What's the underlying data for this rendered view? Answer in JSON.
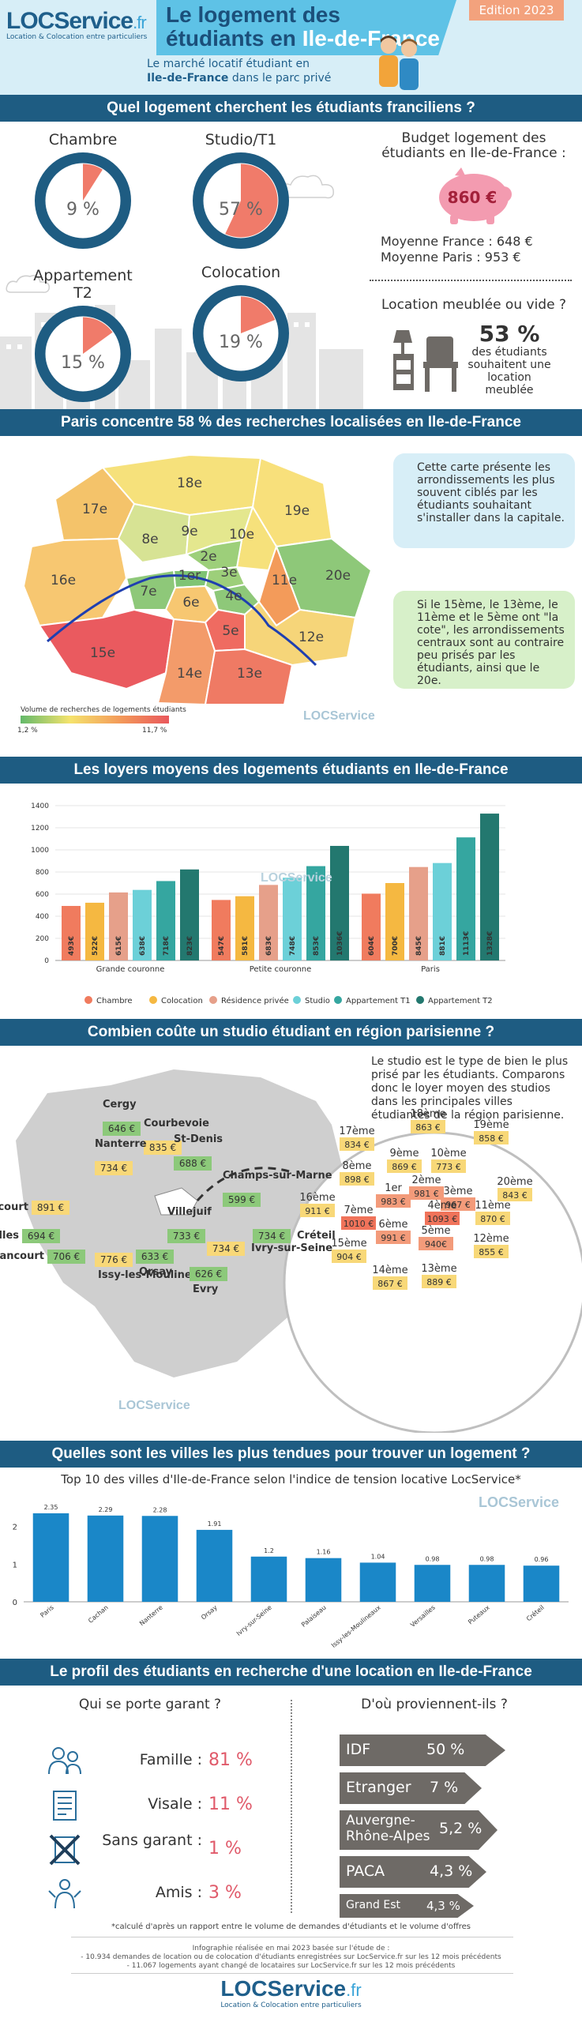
{
  "header": {
    "logo_main": "LOCService",
    "logo_tld": ".fr",
    "logo_sub": "Location & Colocation entre particuliers",
    "title_line1": "Le logement des",
    "title_line2a": "étudiants en ",
    "title_line2b": "Ile-de-France",
    "edition": "Edition 2023",
    "subtitle_line1": "Le marché locatif étudiant en",
    "subtitle_bold": "Ile-de-France",
    "subtitle_rest": " dans le parc privé"
  },
  "section1": {
    "bar": "Quel logement cherchent les étudiants franciliens ?",
    "donuts": [
      {
        "label": "Chambre",
        "value": "9 %",
        "pct": 9
      },
      {
        "label": "Studio/T1",
        "value": "57 %",
        "pct": 57
      },
      {
        "label": "Appartement T2",
        "value": "15 %",
        "pct": 15
      },
      {
        "label": "Colocation",
        "value": "19 %",
        "pct": 19
      }
    ],
    "budget_title": "Budget logement des étudiants en Ile-de-France :",
    "budget_value": "860 €",
    "avg_france": "Moyenne France : 648 €",
    "avg_paris": "Moyenne Paris : 953 €",
    "meuble_title": "Location meublée ou vide ?",
    "meuble_pct": "53 %",
    "meuble_text": "des étudiants souhaitent une location meublée"
  },
  "section2": {
    "bar": "Paris concentre 58 % des recherches localisées en Ile-de-France",
    "bubble1": "Cette carte présente les arrondissements les plus souvent ciblés par les étudiants souhaitant s'installer dans la capitale.",
    "bubble2": "Si le 15ème, le 13ème, le 11ème et le 5ème ont \"la cote\", les arrondissements centraux sont au contraire peu prisés par les étudiants, ainsi que le 20e.",
    "legend_title": "Volume de recherches de logements étudiants",
    "legend_min": "1,2 %",
    "legend_max": "11,7 %",
    "watermark": "LOCService",
    "arrondissements": [
      "1er",
      "2e",
      "3e",
      "4e",
      "5e",
      "6e",
      "7e",
      "8e",
      "9e",
      "10e",
      "11e",
      "12e",
      "13e",
      "14e",
      "15e",
      "16e",
      "17e",
      "18e",
      "19e",
      "20e"
    ]
  },
  "section3": {
    "bar": "Les loyers moyens des logements étudiants en Ile-de-France",
    "watermark": "LOCService",
    "chart_data": {
      "type": "bar",
      "categories": [
        "Grande couronne",
        "Petite couronne",
        "Paris"
      ],
      "ylim": [
        0,
        1400
      ],
      "yticks": [
        0,
        200,
        400,
        600,
        800,
        1000,
        1200,
        1400
      ],
      "series": [
        {
          "name": "Chambre",
          "color": "#f07b5e",
          "values": [
            493,
            547,
            604
          ],
          "labels": [
            "493€",
            "547€",
            "604€"
          ]
        },
        {
          "name": "Colocation",
          "color": "#f5b841",
          "values": [
            522,
            581,
            700
          ],
          "labels": [
            "522€",
            "581€",
            "700€"
          ]
        },
        {
          "name": "Résidence privée",
          "color": "#e6a08a",
          "values": [
            615,
            683,
            845
          ],
          "labels": [
            "615€",
            "683€",
            "845€"
          ]
        },
        {
          "name": "Studio",
          "color": "#6cd0d8",
          "values": [
            638,
            748,
            881
          ],
          "labels": [
            "638€",
            "748€",
            "881€"
          ]
        },
        {
          "name": "Appartement T1",
          "color": "#35a6a0",
          "values": [
            718,
            853,
            1113
          ],
          "labels": [
            "718€",
            "853€",
            "1113€"
          ]
        },
        {
          "name": "Appartement T2",
          "color": "#23786f",
          "values": [
            823,
            1036,
            1328
          ],
          "labels": [
            "823€",
            "1036€",
            "1328€"
          ]
        }
      ]
    }
  },
  "section4": {
    "bar": "Combien coûte un studio étudiant en région parisienne ?",
    "intro": "Le studio est le type de bien le plus prisé par les étudiants. Comparons donc le loyer moyen des studios dans les principales villes étudiantes de la région parisienne.",
    "watermark": "LOCService",
    "cities": [
      {
        "name": "Cergy",
        "price": "646 €",
        "color": "#8cc97a"
      },
      {
        "name": "Courbevoie",
        "price": "835 €",
        "color": "#f8d878"
      },
      {
        "name": "Nanterre",
        "price": "734 €",
        "color": "#f8d878"
      },
      {
        "name": "St-Denis",
        "price": "688 €",
        "color": "#8cc97a"
      },
      {
        "name": "Boulogne-Billancourt",
        "price": "891 €",
        "color": "#f8d878"
      },
      {
        "name": "Champs-sur-Marne",
        "price": "599 €",
        "color": "#8cc97a"
      },
      {
        "name": "Versailles",
        "price": "694 €",
        "color": "#8cc97a"
      },
      {
        "name": "Créteil",
        "price": "734 €",
        "color": "#8cc97a"
      },
      {
        "name": "Villejuif",
        "price": "733 €",
        "color": "#8cc97a"
      },
      {
        "name": "Ivry-sur-Seine",
        "price": "734 €",
        "color": "#f8d878"
      },
      {
        "name": "Guyancourt",
        "price": "706 €",
        "color": "#8cc97a"
      },
      {
        "name": "Issy-les-Moulineaux",
        "price": "776 €",
        "color": "#f8d878"
      },
      {
        "name": "Orsay",
        "price": "633 €",
        "color": "#8cc97a"
      },
      {
        "name": "Evry",
        "price": "626 €",
        "color": "#8cc97a"
      }
    ],
    "paris": [
      {
        "name": "1er",
        "price": "983 €",
        "color": "#f39b7a"
      },
      {
        "name": "2ème",
        "price": "981 €",
        "color": "#f39b7a"
      },
      {
        "name": "3ème",
        "price": "967 €",
        "color": "#f39b7a"
      },
      {
        "name": "4ème",
        "price": "1093 €",
        "color": "#f0735a"
      },
      {
        "name": "5ème",
        "price": "940€",
        "color": "#f39b7a"
      },
      {
        "name": "6ème",
        "price": "991 €",
        "color": "#f39b7a"
      },
      {
        "name": "7ème",
        "price": "1010 €",
        "color": "#f0735a"
      },
      {
        "name": "8ème",
        "price": "898 €",
        "color": "#f8d878"
      },
      {
        "name": "9ème",
        "price": "869 €",
        "color": "#f8d878"
      },
      {
        "name": "10ème",
        "price": "773 €",
        "color": "#f8d878"
      },
      {
        "name": "11ème",
        "price": "870 €",
        "color": "#f8d878"
      },
      {
        "name": "12ème",
        "price": "855 €",
        "color": "#f8d878"
      },
      {
        "name": "13ème",
        "price": "889 €",
        "color": "#f8d878"
      },
      {
        "name": "14ème",
        "price": "867 €",
        "color": "#f8d878"
      },
      {
        "name": "15ème",
        "price": "904 €",
        "color": "#f8d878"
      },
      {
        "name": "16ème",
        "price": "911 €",
        "color": "#f8d878"
      },
      {
        "name": "17ème",
        "price": "834 €",
        "color": "#f8d878"
      },
      {
        "name": "18ème",
        "price": "863 €",
        "color": "#f8d878"
      },
      {
        "name": "19ème",
        "price": "858 €",
        "color": "#f8d878"
      },
      {
        "name": "20ème",
        "price": "843 €",
        "color": "#f8d878"
      }
    ]
  },
  "section5": {
    "bar": "Quelles sont les villes les plus tendues pour trouver un logement  ?",
    "subtitle": "Top 10 des villes d'Ile-de-France selon l'indice de tension locative LocService*",
    "watermark": "LOCService",
    "chart_data": {
      "type": "bar",
      "categories": [
        "Paris",
        "Cachan",
        "Nanterre",
        "Orsay",
        "Ivry-sur-Seine",
        "Palaiseau",
        "Issy-les-Moulineaux",
        "Versailles",
        "Puteaux",
        "Créteil"
      ],
      "values": [
        2.35,
        2.29,
        2.28,
        1.91,
        1.2,
        1.16,
        1.04,
        0.98,
        0.98,
        0.96
      ],
      "labels": [
        "2.35",
        "2.29",
        "2.28",
        "1.91",
        "1.2",
        "1.16",
        "1.04",
        "0.98",
        "0.98",
        "0.96"
      ],
      "yticks": [
        "0",
        "1",
        "2"
      ],
      "ylim": [
        0,
        2.6
      ],
      "color": "#1a87c8"
    }
  },
  "section6": {
    "bar": "Le profil des étudiants en recherche d'une location en Ile-de-France",
    "garant_title": "Qui se porte garant ?",
    "garants": [
      {
        "label": "Famille :",
        "value": "81 %"
      },
      {
        "label": "Visale :",
        "value": "11 %"
      },
      {
        "label": "Sans garant :",
        "value": "1 %"
      },
      {
        "label": "Amis :",
        "value": "3 %"
      }
    ],
    "origin_title": "D'où proviennent-ils ?",
    "origins": [
      {
        "label": "IDF",
        "value": "50 %"
      },
      {
        "label": "Etranger",
        "value": "7 %"
      },
      {
        "label": "Auvergne-Rhône-Alpes",
        "value": "5,2 %"
      },
      {
        "label": "PACA",
        "value": "4,3 %"
      },
      {
        "label": "Grand Est",
        "value": "4,3 %"
      }
    ]
  },
  "footer": {
    "note": "*calculé d'après un rapport entre le volume de demandes d'étudiants et le volume d'offres",
    "info1": "Infographie réalisée en mai 2023 basée sur l'étude de :",
    "info2": "- 10.934 demandes de location ou de colocation d'étudiants enregistrées sur LocService.fr sur les 12 mois précédents",
    "info3": "- 11.067 logements ayant changé de locataires sur LocService.fr sur les 12 mois précédents",
    "logo_main": "LOCService",
    "logo_tld": ".fr",
    "logo_sub": "Location & Colocation entre particuliers"
  }
}
